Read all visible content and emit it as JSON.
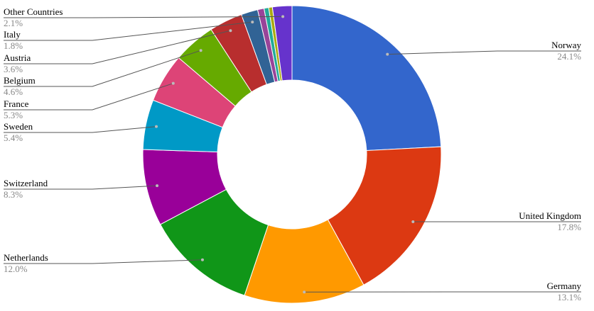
{
  "chart_data": {
    "type": "donut",
    "categories": [
      "Norway",
      "United Kingdom",
      "Germany",
      "Netherlands",
      "Switzerland",
      "Sweden",
      "France",
      "Belgium",
      "Austria",
      "Italy",
      null,
      null,
      null,
      "Other Countries"
    ],
    "values": [
      24.1,
      17.8,
      13.1,
      12.0,
      8.3,
      5.4,
      5.3,
      4.6,
      3.6,
      1.8,
      0.7,
      0.5,
      0.4,
      2.1
    ],
    "value_labels": [
      "24.1%",
      "17.8%",
      "13.1%",
      "12.0%",
      "8.3%",
      "5.4%",
      "5.3%",
      "4.6%",
      "3.6%",
      "1.8%",
      null,
      null,
      null,
      "2.1%"
    ],
    "colors": [
      "#3366cc",
      "#dc3912",
      "#ff9900",
      "#109618",
      "#990099",
      "#0099c6",
      "#dd4477",
      "#66aa00",
      "#b82e2e",
      "#316395",
      "#994499",
      "#22aa99",
      "#aaaa11",
      "#6633cc"
    ]
  }
}
